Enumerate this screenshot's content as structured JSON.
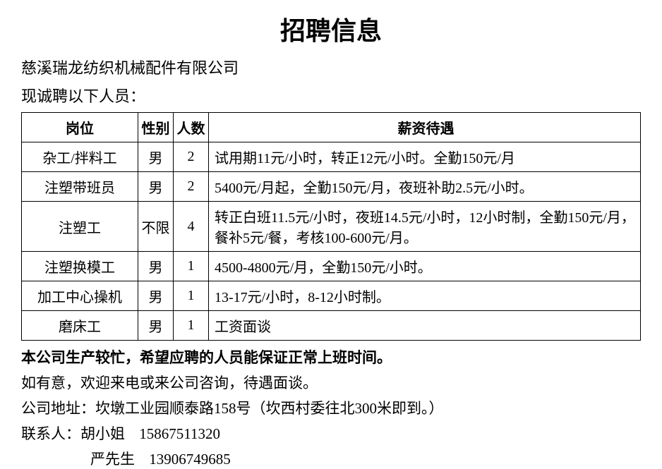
{
  "title": "招聘信息",
  "company_name": "慈溪瑞龙纺织机械配件有限公司",
  "subtitle": "现诚聘以下人员：",
  "table": {
    "headers": {
      "position": "岗位",
      "gender": "性别",
      "count": "人数",
      "salary": "薪资待遇"
    },
    "rows": [
      {
        "position": "杂工/拌料工",
        "gender": "男",
        "count": "2",
        "salary": "试用期11元/小时，转正12元/小时。全勤150元/月"
      },
      {
        "position": "注塑带班员",
        "gender": "男",
        "count": "2",
        "salary": "5400元/月起，全勤150元/月，夜班补助2.5元/小时。"
      },
      {
        "position": "注塑工",
        "gender": "不限",
        "count": "4",
        "salary": "转正白班11.5元/小时，夜班14.5元/小时，12小时制，全勤150元/月，餐补5元/餐，考核100-600元/月。"
      },
      {
        "position": "注塑换模工",
        "gender": "男",
        "count": "1",
        "salary": "4500-4800元/月，全勤150元/小时。"
      },
      {
        "position": "加工中心操机",
        "gender": "男",
        "count": "1",
        "salary": "13-17元/小时，8-12小时制。"
      },
      {
        "position": "磨床工",
        "gender": "男",
        "count": "1",
        "salary": "工资面谈"
      }
    ]
  },
  "footer": {
    "notice": "本公司生产较忙，希望应聘的人员能保证正常上班时间。",
    "invitation": "如有意，欢迎来电或来公司咨询，待遇面谈。",
    "address": "公司地址：坎墩工业园顺泰路158号（坎西村委往北300米即到。）",
    "contact_label": "联系人：",
    "contact1_name": "胡小姐",
    "contact1_phone": "15867511320",
    "contact2_name": "严先生",
    "contact2_phone": "13906749685"
  },
  "styling": {
    "font_family": "SimSun",
    "text_color": "#000000",
    "background_color": "#ffffff",
    "border_color": "#000000",
    "title_fontsize": 36,
    "body_fontsize": 22,
    "table_fontsize": 20
  }
}
